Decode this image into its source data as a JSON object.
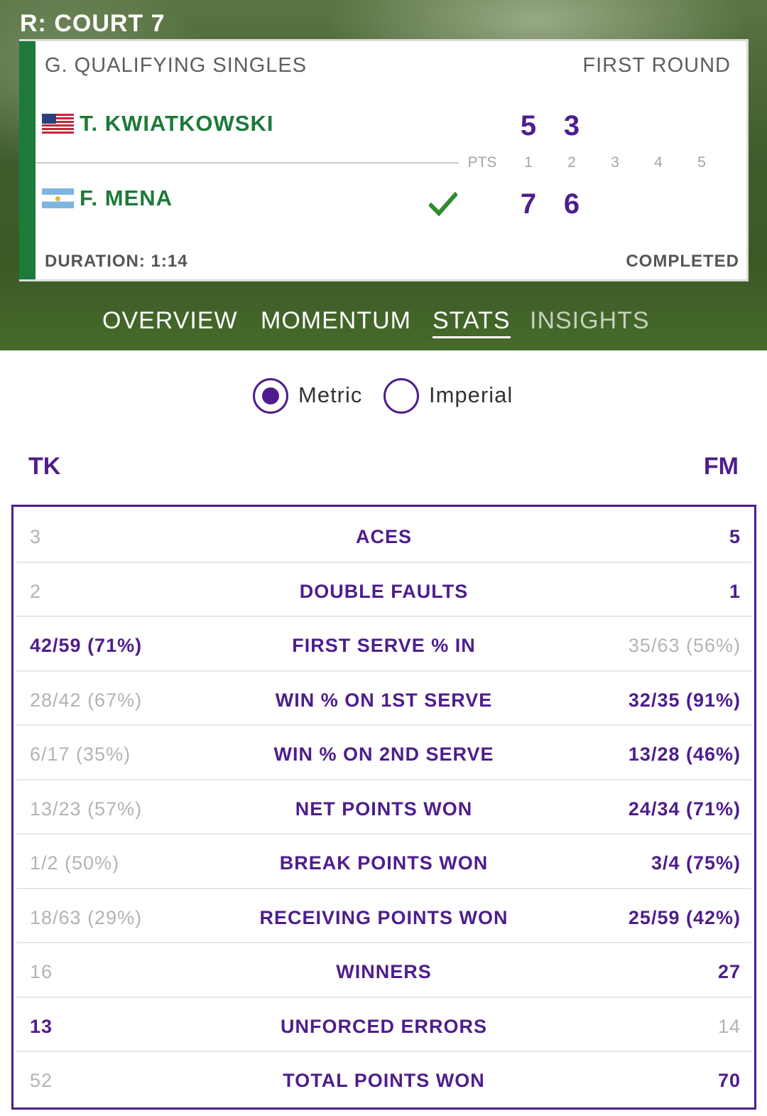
{
  "court": "R: COURT 7",
  "match": {
    "event": "G. QUALIFYING SINGLES",
    "round": "FIRST ROUND",
    "players": [
      {
        "name": "T. KWIATKOWSKI",
        "flag": "usa-flag-icon",
        "set_scores": [
          "5",
          "3"
        ],
        "winner": false
      },
      {
        "name": "F. MENA",
        "flag": "argentina-flag-icon",
        "set_scores": [
          "7",
          "6"
        ],
        "winner": true
      }
    ],
    "score_header": {
      "pts": "PTS",
      "sets": [
        "1",
        "2",
        "3",
        "4",
        "5"
      ]
    },
    "duration": "DURATION: 1:14",
    "status": "COMPLETED"
  },
  "tabs": [
    {
      "label": "OVERVIEW",
      "state": "normal"
    },
    {
      "label": "MOMENTUM",
      "state": "normal"
    },
    {
      "label": "STATS",
      "state": "active"
    },
    {
      "label": "INSIGHTS",
      "state": "dimmed"
    }
  ],
  "units": {
    "metric_label": "Metric",
    "imperial_label": "Imperial",
    "selected": "Metric"
  },
  "stats": {
    "left_abbr": "TK",
    "right_abbr": "FM",
    "rows": [
      {
        "label": "ACES",
        "left": "3",
        "right": "5",
        "leader": "right"
      },
      {
        "label": "DOUBLE FAULTS",
        "left": "2",
        "right": "1",
        "leader": "right"
      },
      {
        "label": "FIRST SERVE % IN",
        "left": "42/59 (71%)",
        "right": "35/63 (56%)",
        "leader": "left"
      },
      {
        "label": "WIN % ON 1ST SERVE",
        "left": "28/42 (67%)",
        "right": "32/35 (91%)",
        "leader": "right"
      },
      {
        "label": "WIN % ON 2ND SERVE",
        "left": "6/17 (35%)",
        "right": "13/28 (46%)",
        "leader": "right"
      },
      {
        "label": "NET POINTS WON",
        "left": "13/23 (57%)",
        "right": "24/34 (71%)",
        "leader": "right"
      },
      {
        "label": "BREAK POINTS WON",
        "left": "1/2 (50%)",
        "right": "3/4 (75%)",
        "leader": "right"
      },
      {
        "label": "RECEIVING POINTS WON",
        "left": "18/63 (29%)",
        "right": "25/59 (42%)",
        "leader": "right"
      },
      {
        "label": "WINNERS",
        "left": "16",
        "right": "27",
        "leader": "right"
      },
      {
        "label": "UNFORCED ERRORS",
        "left": "13",
        "right": "14",
        "leader": "left"
      },
      {
        "label": "TOTAL POINTS WON",
        "left": "52",
        "right": "70",
        "leader": "right"
      }
    ]
  },
  "colors": {
    "accent_purple": "#4e1d8d",
    "player_green": "#1d7a3a",
    "muted_gray": "#b3b3b3"
  }
}
